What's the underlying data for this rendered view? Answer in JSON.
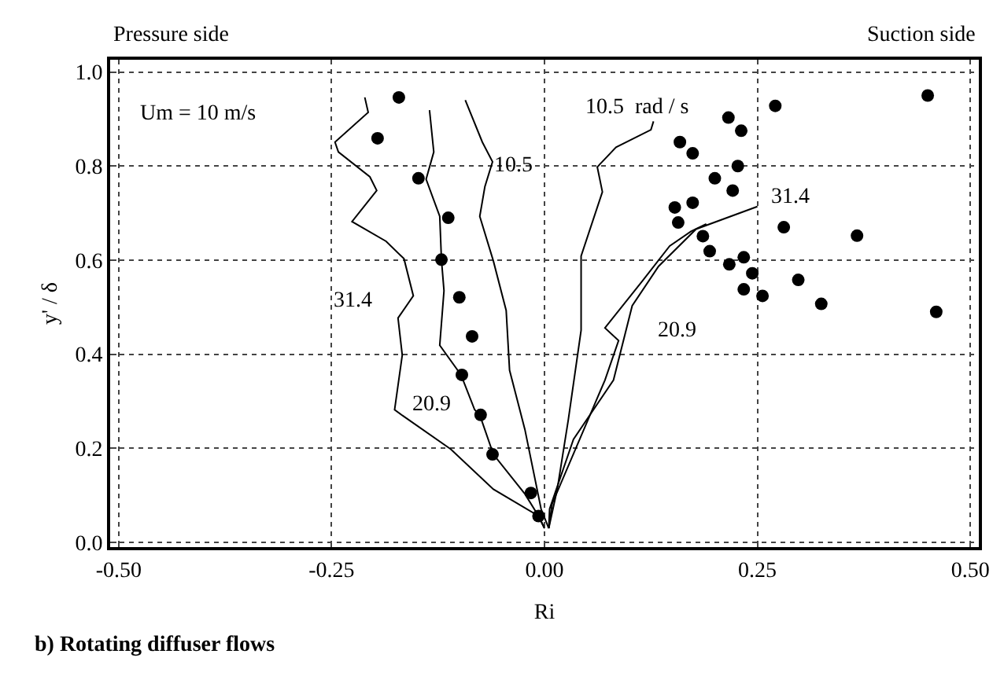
{
  "chart_data": {
    "type": "scatter",
    "xlabel": "Ri",
    "ylabel": "y' / δ",
    "xlim": [
      -0.51,
      0.51
    ],
    "ylim": [
      -0.01,
      1.026
    ],
    "xticks": [
      {
        "value": -0.5,
        "label": "-0.50"
      },
      {
        "value": -0.25,
        "label": "-0.25"
      },
      {
        "value": 0,
        "label": "0.00"
      },
      {
        "value": 0.25,
        "label": "0.25"
      },
      {
        "value": 0.5,
        "label": "0.50"
      }
    ],
    "yticks": [
      {
        "value": 0,
        "label": "0.0"
      },
      {
        "value": 0.2,
        "label": "0.2"
      },
      {
        "value": 0.4,
        "label": "0.4"
      },
      {
        "value": 0.6,
        "label": "0.6"
      },
      {
        "value": 0.8,
        "label": "0.8"
      },
      {
        "value": 1,
        "label": "1.0"
      }
    ],
    "grid": true,
    "line_style": "solid",
    "series": [
      {
        "marker": "circle",
        "color": "#000000",
        "x": [
          -0.171,
          -0.196,
          -0.148,
          -0.113,
          -0.121,
          -0.1,
          -0.085,
          -0.097,
          -0.075,
          -0.061,
          -0.016,
          -0.007,
          0.271,
          0.216,
          0.231,
          0.159,
          0.174,
          0.227,
          0.2,
          0.221,
          0.174,
          0.153,
          0.157,
          0.186,
          0.194,
          0.217,
          0.234,
          0.244,
          0.234,
          0.256,
          0.281,
          0.298,
          0.325,
          0.367,
          0.45,
          0.46
        ],
        "values": [
          0.946,
          0.859,
          0.774,
          0.69,
          0.601,
          0.521,
          0.438,
          0.356,
          0.271,
          0.187,
          0.105,
          0.056,
          0.928,
          0.903,
          0.875,
          0.851,
          0.827,
          0.8,
          0.774,
          0.748,
          0.722,
          0.712,
          0.68,
          0.651,
          0.619,
          0.591,
          0.606,
          0.572,
          0.538,
          0.524,
          0.67,
          0.558,
          0.507,
          0.652,
          0.95,
          0.49
        ]
      },
      {
        "type": "line",
        "color": "#000000",
        "x": [
          0,
          -0.007,
          -0.06,
          -0.11,
          -0.167,
          -0.176,
          -0.167,
          -0.172,
          -0.154,
          -0.165,
          -0.186,
          -0.226,
          -0.197,
          -0.205,
          -0.242,
          -0.246,
          -0.207,
          -0.211
        ],
        "values": [
          0.03,
          0.056,
          0.113,
          0.198,
          0.27,
          0.282,
          0.398,
          0.477,
          0.524,
          0.603,
          0.64,
          0.682,
          0.748,
          0.777,
          0.83,
          0.851,
          0.914,
          0.946
        ]
      },
      {
        "type": "line",
        "color": "#000000",
        "x": [
          0,
          -0.007,
          -0.023,
          -0.06,
          -0.076,
          -0.082,
          -0.098,
          -0.123,
          -0.118,
          -0.121,
          -0.123,
          -0.139,
          -0.13,
          -0.135
        ],
        "values": [
          0.03,
          0.056,
          0.103,
          0.187,
          0.271,
          0.282,
          0.356,
          0.419,
          0.535,
          0.601,
          0.693,
          0.772,
          0.83,
          0.919
        ]
      },
      {
        "type": "line",
        "color": "#000000",
        "x": [
          0.005,
          -0.004,
          -0.023,
          -0.041,
          -0.045,
          -0.06,
          -0.076,
          -0.07,
          -0.061,
          -0.073,
          -0.093
        ],
        "values": [
          0.03,
          0.071,
          0.24,
          0.366,
          0.493,
          0.598,
          0.693,
          0.756,
          0.809,
          0.851,
          0.94
        ]
      },
      {
        "type": "line",
        "color": "#000000",
        "x": [
          0.005,
          0.015,
          0.028,
          0.043,
          0.043,
          0.068,
          0.062,
          0.084,
          0.125,
          0.128
        ],
        "values": [
          0.03,
          0.113,
          0.261,
          0.451,
          0.609,
          0.745,
          0.798,
          0.84,
          0.877,
          0.895
        ]
      },
      {
        "type": "line",
        "color": "#000000",
        "x": [
          0.005,
          0.009,
          0.071,
          0.087,
          0.071,
          0.115,
          0.147,
          0.172,
          0.19
        ],
        "values": [
          0.03,
          0.082,
          0.345,
          0.429,
          0.456,
          0.556,
          0.63,
          0.661,
          0.677
        ]
      },
      {
        "type": "line",
        "color": "#000000",
        "x": [
          0.005,
          0.006,
          0.034,
          0.081,
          0.103,
          0.134,
          0.178,
          0.25
        ],
        "values": [
          0.03,
          0.071,
          0.219,
          0.345,
          0.503,
          0.587,
          0.666,
          0.714
        ]
      }
    ],
    "annotations": [
      "Pressure side",
      "Suction side",
      "Um = 10 m/s",
      "b) Rotating diffuser flows",
      "31.4",
      "20.9",
      "10.5",
      "10.5  rad / s",
      "31.4",
      "20.9"
    ]
  }
}
